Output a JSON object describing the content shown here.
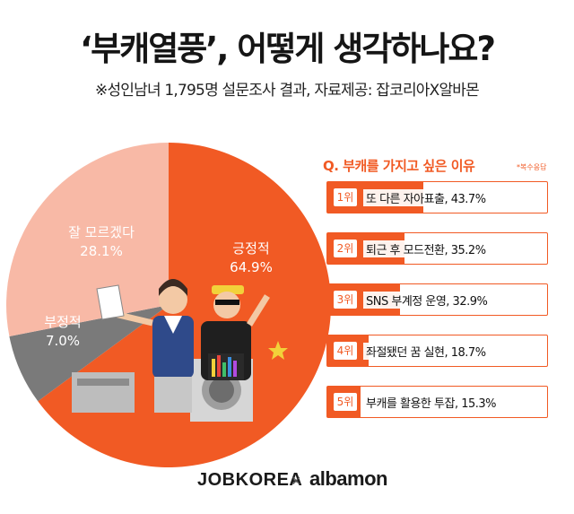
{
  "header": {
    "title": "‘부캐열풍’, 어떻게 생각하나요?",
    "subtitle": "※성인남녀 1,795명 설문조사 결과, 자료제공: 잡코리아X알바몬"
  },
  "colors": {
    "accent": "#f15a24",
    "positive": "#f15a24",
    "unknown": "#f8b9a6",
    "negative": "#7a7a7a"
  },
  "chart_data": [
    {
      "type": "pie",
      "slices": [
        {
          "label": "긍정적",
          "value": 64.9,
          "value_label": "64.9%",
          "color": "#f15a24"
        },
        {
          "label": "부정적",
          "value": 7.0,
          "value_label": "7.0%",
          "color": "#7a7a7a"
        },
        {
          "label": "잘 모르겠다",
          "value": 28.1,
          "value_label": "28.1%",
          "color": "#f8b9a6"
        }
      ]
    },
    {
      "type": "bar",
      "title": "Q. 부캐를 가지고 싶은 이유",
      "note": "*복수응답",
      "categories": [
        "또 다른 자아표출",
        "퇴근 후 모드전환",
        "SNS 부계정 운영",
        "좌절됐던 꿈 실현",
        "부캐를 활용한 투잡"
      ],
      "ranks": [
        "1위",
        "2위",
        "3위",
        "4위",
        "5위"
      ],
      "values": [
        43.7,
        35.2,
        32.9,
        18.7,
        15.3
      ],
      "labels": [
        "또 다른 자아표출, 43.7%",
        "퇴근 후 모드전환, 35.2%",
        "SNS 부계정 운영, 32.9%",
        "좌절됐던 꿈 실현, 18.7%",
        "부캐를 활용한 투잡, 15.3%"
      ]
    }
  ],
  "footer": {
    "logo_left": "JOBKOREA",
    "separator": "×",
    "logo_right": "albamon"
  }
}
